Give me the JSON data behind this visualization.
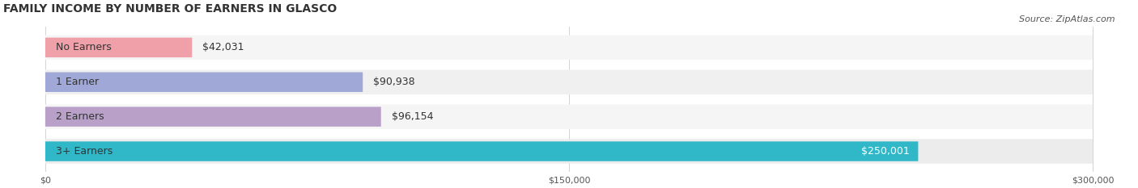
{
  "title": "FAMILY INCOME BY NUMBER OF EARNERS IN GLASCO",
  "source": "Source: ZipAtlas.com",
  "categories": [
    "No Earners",
    "1 Earner",
    "2 Earners",
    "3+ Earners"
  ],
  "values": [
    42031,
    90938,
    96154,
    250001
  ],
  "bar_colors": [
    "#f0a0a8",
    "#a0a8d8",
    "#b8a0c8",
    "#30b8c8"
  ],
  "label_colors": [
    "#555555",
    "#555555",
    "#555555",
    "#ffffff"
  ],
  "value_labels": [
    "$42,031",
    "$90,938",
    "$96,154",
    "$250,001"
  ],
  "bar_bg_color": "#e8e8e8",
  "row_bg_colors": [
    "#f5f5f5",
    "#f0f0f0",
    "#f5f5f5",
    "#ececec"
  ],
  "xlim": [
    0,
    300000
  ],
  "xtick_values": [
    0,
    150000,
    300000
  ],
  "xtick_labels": [
    "$0",
    "$150,000",
    "$300,000"
  ],
  "title_fontsize": 10,
  "source_fontsize": 8,
  "label_fontsize": 9,
  "value_fontsize": 9,
  "background_color": "#ffffff"
}
